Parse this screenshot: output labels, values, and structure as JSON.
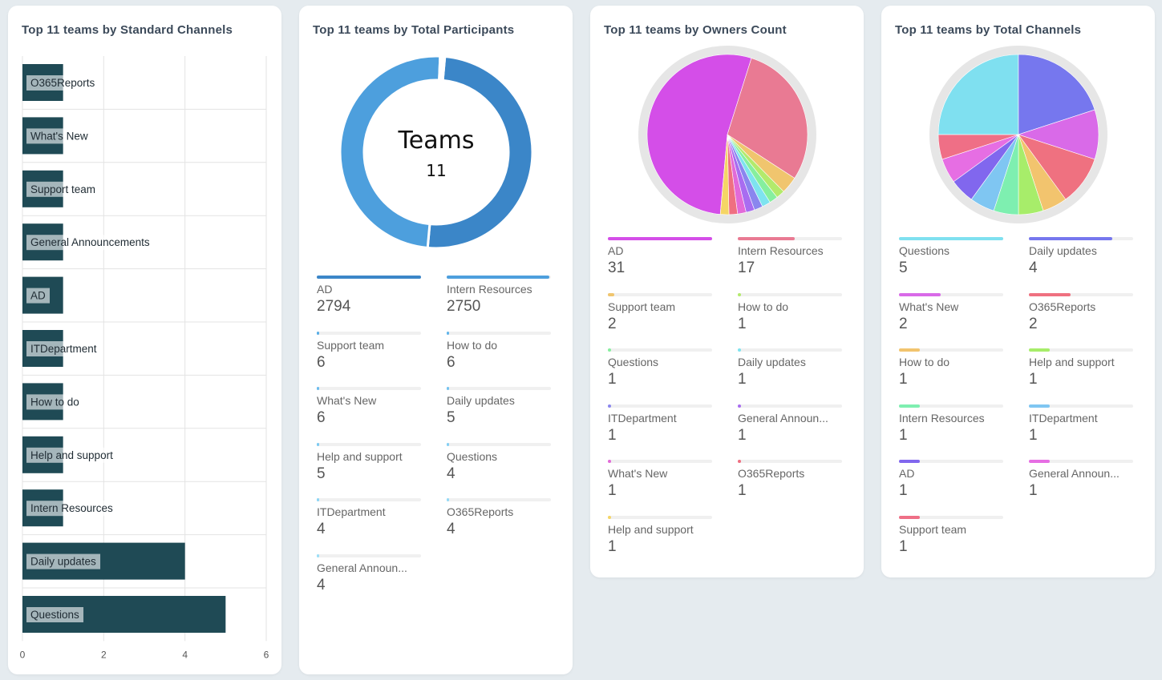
{
  "cards": [
    {
      "title": "Top 11 teams by Standard Channels"
    },
    {
      "title": "Top 11 teams by Total Participants"
    },
    {
      "title": "Top 11 teams by Owners Count"
    },
    {
      "title": "Top 11 teams by Total Channels"
    }
  ],
  "donut_center": {
    "label": "Teams",
    "value": "11"
  },
  "chart_data": [
    {
      "type": "bar",
      "title": "Top 11 teams by Standard Channels",
      "orientation": "horizontal",
      "categories": [
        "O365Reports",
        "What's New",
        "Support team",
        "General Announcements",
        "AD",
        "ITDepartment",
        "How to do",
        "Help and support",
        "Intern Resources",
        "Daily updates",
        "Questions"
      ],
      "values": [
        1,
        1,
        1,
        1,
        1,
        1,
        1,
        1,
        1,
        4,
        5
      ],
      "xlim": [
        0,
        6
      ],
      "xticks": [
        "0",
        "2",
        "4",
        "6"
      ],
      "grid": true,
      "bar_color": "#1f4a55"
    },
    {
      "type": "pie",
      "variant": "donut",
      "title": "Top 11 teams by Total Participants",
      "categories": [
        "AD",
        "Intern Resources",
        "Support team",
        "How to do",
        "What's New",
        "Daily updates",
        "Help and support",
        "Questions",
        "ITDepartment",
        "O365Reports",
        "General Announ..."
      ],
      "values": [
        2794,
        2750,
        6,
        6,
        6,
        5,
        5,
        4,
        4,
        4,
        4
      ],
      "colors": [
        "#3b86c8",
        "#4d9fdd",
        "#5aaee6",
        "#62b5ea",
        "#6bbcee",
        "#74c3f0",
        "#7ccaf2",
        "#84d0f4",
        "#8cd5f5",
        "#94daf6",
        "#9cdff7"
      ]
    },
    {
      "type": "pie",
      "title": "Top 11 teams by Owners Count",
      "categories": [
        "AD",
        "Intern Resources",
        "Support team",
        "How to do",
        "Questions",
        "Daily updates",
        "ITDepartment",
        "General Announ...",
        "What's New",
        "O365Reports",
        "Help and support"
      ],
      "values": [
        31,
        17,
        2,
        1,
        1,
        1,
        1,
        1,
        1,
        1,
        1
      ],
      "colors": [
        "#d44ee8",
        "#e97a93",
        "#f0c56e",
        "#b3ea6c",
        "#86ef9e",
        "#7ee3ef",
        "#8a86ee",
        "#a86cf0",
        "#e26ad8",
        "#ef6f81",
        "#f5d565"
      ]
    },
    {
      "type": "pie",
      "title": "Top 11 teams by Total Channels",
      "categories": [
        "Questions",
        "Daily updates",
        "What's New",
        "O365Reports",
        "How to do",
        "Help and support",
        "Intern Resources",
        "ITDepartment",
        "AD",
        "General Announ...",
        "Support team"
      ],
      "values": [
        5,
        4,
        2,
        2,
        1,
        1,
        1,
        1,
        1,
        1,
        1
      ],
      "colors": [
        "#7fe0f0",
        "#7677ee",
        "#d96ae8",
        "#ef7180",
        "#f2c46e",
        "#a7ed6a",
        "#7eefb0",
        "#7fc6f2",
        "#8167ee",
        "#e66ee3",
        "#ef6f86"
      ]
    }
  ]
}
